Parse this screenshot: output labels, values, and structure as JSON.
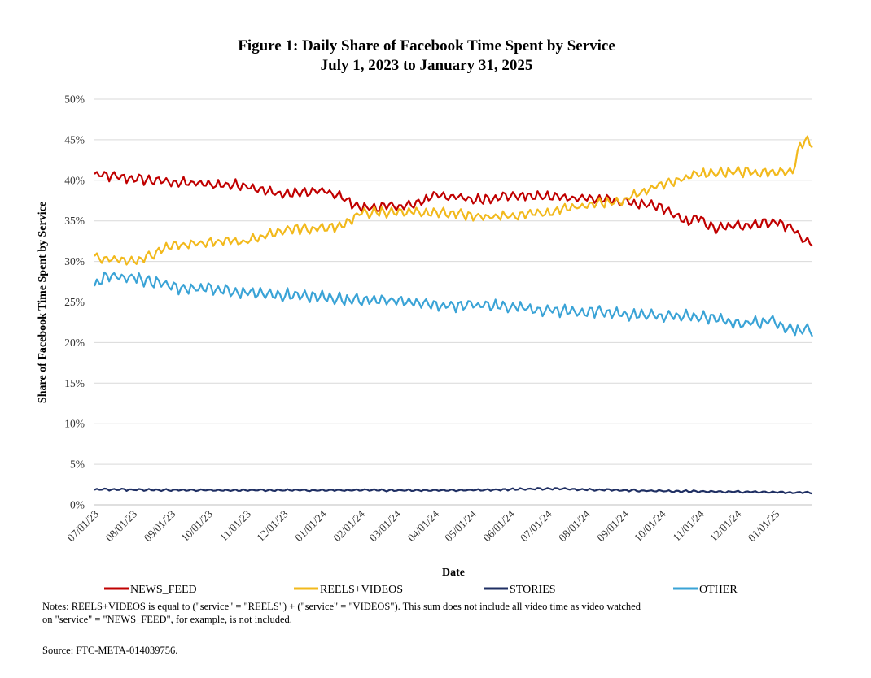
{
  "chart_data": {
    "type": "line",
    "title": "Figure 1: Daily Share of Facebook Time Spent by Service",
    "subtitle": "July 1, 2023 to January 31, 2025",
    "xlabel": "Date",
    "ylabel": "Share of Facebook Time Spent by Service",
    "ylim": [
      0,
      50
    ],
    "yticks": [
      "0%",
      "5%",
      "10%",
      "15%",
      "20%",
      "25%",
      "30%",
      "35%",
      "40%",
      "45%",
      "50%"
    ],
    "xlim_days": [
      0,
      580
    ],
    "xticks": [
      {
        "label": "07/01/23",
        "day": 0
      },
      {
        "label": "08/01/23",
        "day": 31
      },
      {
        "label": "09/01/23",
        "day": 62
      },
      {
        "label": "10/01/23",
        "day": 92
      },
      {
        "label": "11/01/23",
        "day": 123
      },
      {
        "label": "12/01/23",
        "day": 153
      },
      {
        "label": "01/01/24",
        "day": 184
      },
      {
        "label": "02/01/24",
        "day": 215
      },
      {
        "label": "03/01/24",
        "day": 244
      },
      {
        "label": "04/01/24",
        "day": 275
      },
      {
        "label": "05/01/24",
        "day": 305
      },
      {
        "label": "06/01/24",
        "day": 336
      },
      {
        "label": "07/01/24",
        "day": 366
      },
      {
        "label": "08/01/24",
        "day": 397
      },
      {
        "label": "09/01/24",
        "day": 428
      },
      {
        "label": "10/01/24",
        "day": 458
      },
      {
        "label": "11/01/24",
        "day": 489
      },
      {
        "label": "12/01/24",
        "day": 519
      },
      {
        "label": "01/01/25",
        "day": 550
      }
    ],
    "grid": true,
    "legend_position": "bottom",
    "series": [
      {
        "name": "NEWS_FEED",
        "color": "#c00000",
        "amplitude": 0.6,
        "anchors": [
          [
            0,
            40.7
          ],
          [
            31,
            40.2
          ],
          [
            62,
            39.8
          ],
          [
            92,
            39.5
          ],
          [
            123,
            39.4
          ],
          [
            140,
            38.6
          ],
          [
            153,
            38.3
          ],
          [
            184,
            38.7
          ],
          [
            200,
            37.9
          ],
          [
            215,
            36.6
          ],
          [
            244,
            36.8
          ],
          [
            260,
            37.0
          ],
          [
            275,
            38.3
          ],
          [
            305,
            37.6
          ],
          [
            336,
            38.1
          ],
          [
            366,
            38.0
          ],
          [
            397,
            37.8
          ],
          [
            428,
            37.4
          ],
          [
            458,
            36.6
          ],
          [
            480,
            34.8
          ],
          [
            489,
            35.4
          ],
          [
            500,
            34.0
          ],
          [
            519,
            34.4
          ],
          [
            550,
            34.9
          ],
          [
            565,
            34.0
          ],
          [
            575,
            32.3
          ],
          [
            580,
            32.5
          ]
        ]
      },
      {
        "name": "REELS+VIDEOS",
        "color": "#f2b91c",
        "amplitude": 0.6,
        "anchors": [
          [
            0,
            30.4
          ],
          [
            31,
            30.0
          ],
          [
            62,
            31.8
          ],
          [
            92,
            32.4
          ],
          [
            123,
            32.5
          ],
          [
            153,
            34.0
          ],
          [
            184,
            34.1
          ],
          [
            200,
            34.5
          ],
          [
            215,
            36.0
          ],
          [
            244,
            36.1
          ],
          [
            275,
            36.0
          ],
          [
            305,
            35.6
          ],
          [
            336,
            35.6
          ],
          [
            366,
            36.0
          ],
          [
            397,
            37.0
          ],
          [
            428,
            37.6
          ],
          [
            458,
            39.5
          ],
          [
            489,
            40.8
          ],
          [
            519,
            41.0
          ],
          [
            550,
            41.0
          ],
          [
            565,
            41.2
          ],
          [
            570,
            44.5
          ],
          [
            575,
            44.9
          ],
          [
            580,
            44.3
          ]
        ]
      },
      {
        "name": "STORIES",
        "color": "#1f2f63",
        "amplitude": 0.12,
        "anchors": [
          [
            0,
            1.9
          ],
          [
            62,
            1.8
          ],
          [
            184,
            1.8
          ],
          [
            300,
            1.8
          ],
          [
            366,
            2.0
          ],
          [
            397,
            1.9
          ],
          [
            458,
            1.7
          ],
          [
            519,
            1.6
          ],
          [
            580,
            1.5
          ]
        ]
      },
      {
        "name": "OTHER",
        "color": "#3aa3d6",
        "amplitude": 0.7,
        "anchors": [
          [
            0,
            27.2
          ],
          [
            8,
            28.2
          ],
          [
            31,
            28.1
          ],
          [
            62,
            26.8
          ],
          [
            92,
            26.6
          ],
          [
            123,
            26.1
          ],
          [
            153,
            25.9
          ],
          [
            184,
            25.6
          ],
          [
            215,
            25.2
          ],
          [
            244,
            25.2
          ],
          [
            275,
            24.6
          ],
          [
            305,
            24.6
          ],
          [
            336,
            24.5
          ],
          [
            366,
            24.0
          ],
          [
            397,
            23.8
          ],
          [
            428,
            23.5
          ],
          [
            458,
            23.3
          ],
          [
            489,
            23.2
          ],
          [
            519,
            22.4
          ],
          [
            550,
            22.6
          ],
          [
            565,
            21.6
          ],
          [
            580,
            21.5
          ]
        ]
      }
    ]
  },
  "legend": {
    "items": [
      "NEWS_FEED",
      "REELS+VIDEOS",
      "STORIES",
      "OTHER"
    ]
  },
  "notes": {
    "line1": "Notes: REELS+VIDEOS is equal to (\"service\" = \"REELS\") + (\"service\" = \"VIDEOS\").  This sum does not include all video time as video watched",
    "line2": "on \"service\" = \"NEWS_FEED\", for example, is not included.",
    "source": "Source: FTC-META-014039756."
  }
}
